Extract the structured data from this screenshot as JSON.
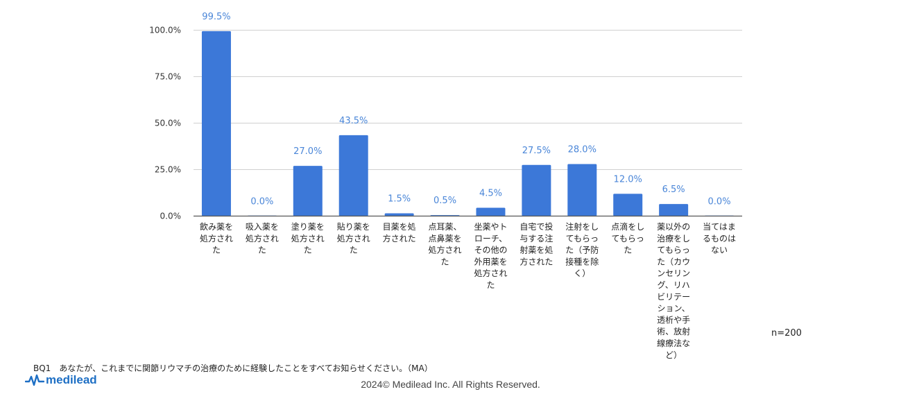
{
  "chart_data": {
    "type": "bar",
    "categories": [
      [
        "飲み薬を",
        "処方され",
        "た"
      ],
      [
        "吸入薬を",
        "処方され",
        "た"
      ],
      [
        "塗り薬を",
        "処方され",
        "た"
      ],
      [
        "貼り薬を",
        "処方され",
        "た"
      ],
      [
        "目薬を処",
        "方された"
      ],
      [
        "点耳薬、",
        "点鼻薬を",
        "処方され",
        "た"
      ],
      [
        "坐薬やト",
        "ローチ、",
        "その他の",
        "外用薬を",
        "処方され",
        "た"
      ],
      [
        "自宅で投",
        "与する注",
        "射薬を処",
        "方された"
      ],
      [
        "注射をし",
        "てもらっ",
        "た（予防",
        "接種を除",
        "く）"
      ],
      [
        "点滴をし",
        "てもらっ",
        "た"
      ],
      [
        "薬以外の",
        "治療をし",
        "てもらっ",
        "た（カウ",
        "ンセリン",
        "グ、リハ",
        "ビリテー",
        "ション、",
        "透析や手",
        "術、放射",
        "線療法な",
        "ど）"
      ],
      [
        "当てはま",
        "るものは",
        "ない"
      ]
    ],
    "values": [
      99.5,
      0.0,
      27.0,
      43.5,
      1.5,
      0.5,
      4.5,
      27.5,
      28.0,
      12.0,
      6.5,
      0.0
    ],
    "data_labels": [
      "99.5%",
      "0.0%",
      "27.0%",
      "43.5%",
      "1.5%",
      "0.5%",
      "4.5%",
      "27.5%",
      "28.0%",
      "12.0%",
      "6.5%",
      "0.0%"
    ],
    "y_ticks": [
      0,
      25,
      50,
      75,
      100
    ],
    "y_tick_labels": [
      "0.0%",
      "25.0%",
      "50.0%",
      "75.0%",
      "100.0%"
    ],
    "ylim": [
      0,
      100
    ],
    "grid": true,
    "bar_color": "#3c78d8",
    "label_color": "#4a86d8"
  },
  "note": "n=200",
  "question": "BQ1　あなたが、これまでに関節リウマチの治療のために経験したことをすべてお知らせください。（MA）",
  "logo_text": "medilead",
  "copyright": "2024© Medilead Inc. All Rights Reserved.",
  "logo_color": "#1e6fc4"
}
